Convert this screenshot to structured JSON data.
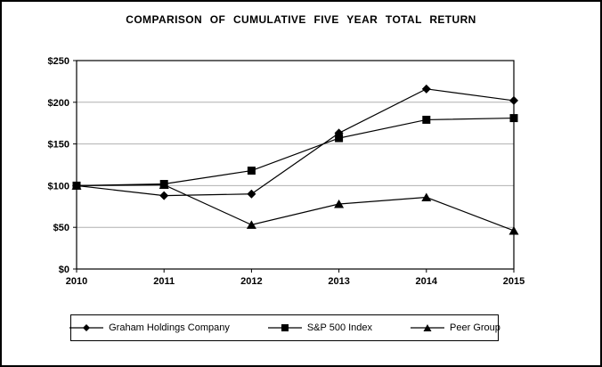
{
  "figure": {
    "title": "COMPARISON OF CUMULATIVE FIVE YEAR TOTAL RETURN"
  },
  "chart_data": {
    "type": "line",
    "title": "COMPARISON OF CUMULATIVE FIVE YEAR TOTAL RETURN",
    "categories": [
      "2010",
      "2011",
      "2012",
      "2013",
      "2014",
      "2015"
    ],
    "series": [
      {
        "name": "Graham Holdings Company",
        "marker": "diamond",
        "values": [
          100,
          88,
          90,
          163,
          216,
          202
        ]
      },
      {
        "name": "S&P 500 Index",
        "marker": "square",
        "values": [
          100,
          102,
          118,
          157,
          179,
          181
        ]
      },
      {
        "name": "Peer Group",
        "marker": "triangle",
        "values": [
          100,
          101,
          53,
          78,
          86,
          46
        ]
      }
    ],
    "xlabel": "",
    "ylabel": "",
    "ylim": [
      0,
      250
    ],
    "y_tick_interval": 50,
    "y_tick_labels": [
      "$0",
      "$50",
      "$100",
      "$150",
      "$200",
      "$250"
    ],
    "grid": true,
    "legend_position": "bottom",
    "colors": {
      "background": "#ffffff",
      "series": "#000000",
      "grid": "#b0b0b0",
      "axis": "#000000",
      "text": "#000000",
      "legend_border": "#000000"
    }
  }
}
